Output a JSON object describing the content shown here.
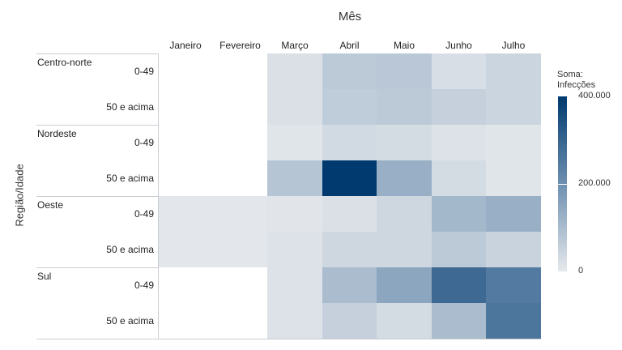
{
  "chart_data": {
    "type": "heatmap",
    "title": "",
    "xlabel": "Mês",
    "ylabel": "Região/Idade",
    "columns": [
      "Janeiro",
      "Fevereiro",
      "Março",
      "Abril",
      "Maio",
      "Junho",
      "Julho"
    ],
    "rows": [
      {
        "region": "Centro-norte",
        "age": "0-49",
        "values": [
          null,
          null,
          20000,
          70000,
          75000,
          25000,
          45000
        ]
      },
      {
        "region": "Centro-norte",
        "age": "50 e acima",
        "values": [
          null,
          null,
          20000,
          65000,
          70000,
          55000,
          45000
        ]
      },
      {
        "region": "Nordeste",
        "age": "0-49",
        "values": [
          null,
          null,
          10000,
          35000,
          30000,
          15000,
          10000
        ]
      },
      {
        "region": "Nordeste",
        "age": "50 e acima",
        "values": [
          null,
          null,
          80000,
          400000,
          130000,
          30000,
          10000
        ]
      },
      {
        "region": "Oeste",
        "age": "0-49",
        "values": [
          5000,
          5000,
          8000,
          20000,
          40000,
          110000,
          130000
        ]
      },
      {
        "region": "Oeste",
        "age": "50 e acima",
        "values": [
          5000,
          5000,
          15000,
          40000,
          40000,
          70000,
          50000
        ]
      },
      {
        "region": "Sul",
        "age": "0-49",
        "values": [
          null,
          null,
          15000,
          100000,
          150000,
          290000,
          250000
        ]
      },
      {
        "region": "Sul",
        "age": "50 e acima",
        "values": [
          null,
          null,
          15000,
          55000,
          30000,
          100000,
          260000
        ]
      }
    ],
    "color_scale": {
      "title": "Soma: Infecções",
      "min": 0,
      "max": 400000,
      "ticks": [
        {
          "value": 400000,
          "label": "400.000"
        },
        {
          "value": 200000,
          "label": "200.000"
        },
        {
          "value": 0,
          "label": "0"
        }
      ],
      "low_color": "#e6e9ec",
      "mid_color": "#6e8fb0",
      "high_color": "#003a6e"
    }
  },
  "legend": {
    "title_line1": "Soma:",
    "title_line2": "Infecções"
  }
}
